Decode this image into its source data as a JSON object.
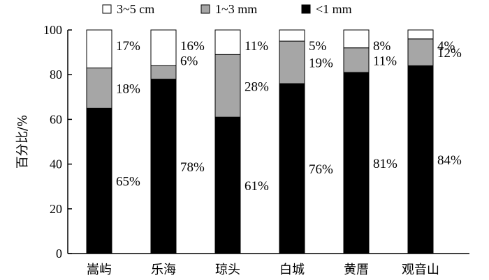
{
  "chart_data": {
    "type": "bar",
    "stacked": true,
    "categories": [
      "嵩屿",
      "乐海",
      "琼头",
      "白城",
      "黄厝",
      "观音山"
    ],
    "series": [
      {
        "name": "<1 mm",
        "color": "#000000",
        "values": [
          65,
          78,
          61,
          76,
          81,
          84
        ],
        "labels": [
          "65%",
          "78%",
          "61%",
          "76%",
          "81%",
          "84%"
        ]
      },
      {
        "name": "1~3 mm",
        "color": "#a6a6a6",
        "values": [
          18,
          6,
          28,
          19,
          11,
          12
        ],
        "labels": [
          "18%",
          "6%",
          "28%",
          "19%",
          "11%",
          "12%"
        ]
      },
      {
        "name": "3~5 cm",
        "color": "#ffffff",
        "values": [
          17,
          16,
          11,
          5,
          8,
          4
        ],
        "labels": [
          "17%",
          "16%",
          "11%",
          "5%",
          "8%",
          "4%"
        ]
      }
    ],
    "legend_order": [
      "3~5 cm",
      "1~3 mm",
      "<1 mm"
    ],
    "legend_position": "top",
    "ylabel": "百分比/%",
    "ylim": [
      0,
      100
    ],
    "yticks": [
      0,
      20,
      40,
      60,
      80,
      100
    ],
    "grid": false
  }
}
